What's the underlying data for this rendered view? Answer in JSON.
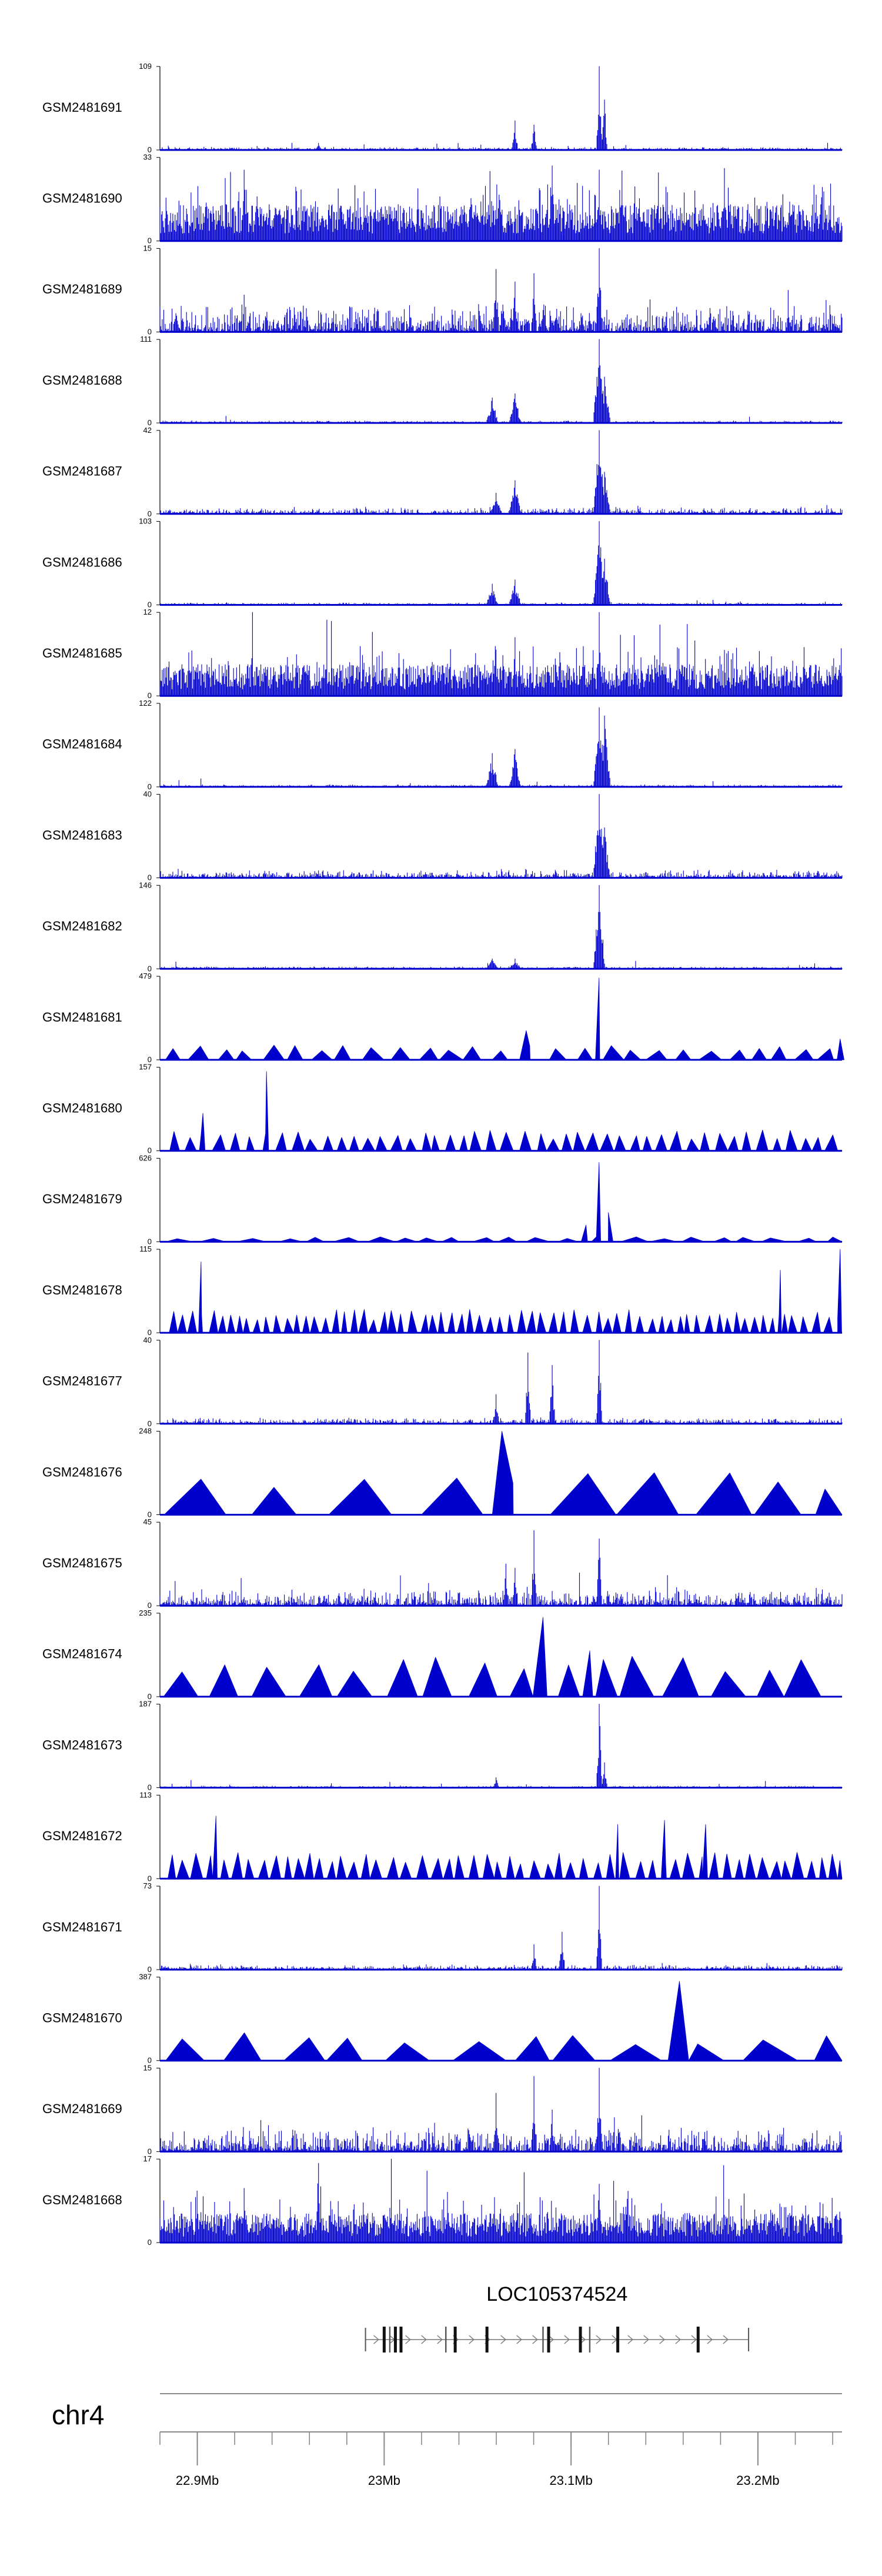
{
  "chart_data": {
    "type": "area",
    "chromosome": "chr4",
    "x_unit": "Mb",
    "xlim": [
      22.88,
      23.245
    ],
    "color": "#0000CC",
    "tracks": [
      {
        "name": "GSM2481691",
        "ymax": "109",
        "ymin": "0",
        "pattern": "sparse",
        "seed": 11,
        "base": 0.03,
        "spikes": [
          [
            23.115,
            1.0
          ],
          [
            23.118,
            0.6
          ],
          [
            23.07,
            0.35
          ],
          [
            23.08,
            0.3
          ],
          [
            22.965,
            0.08
          ]
        ]
      },
      {
        "name": "GSM2481690",
        "ymax": "33",
        "ymin": "0",
        "pattern": "dense",
        "seed": 12,
        "base": 0.35,
        "spikes": [
          [
            22.925,
            0.85
          ],
          [
            23.09,
            0.9
          ],
          [
            23.115,
            0.85
          ]
        ]
      },
      {
        "name": "GSM2481689",
        "ymax": "15",
        "ymin": "0",
        "pattern": "medium",
        "seed": 13,
        "base": 0.18,
        "spikes": [
          [
            23.115,
            1.0
          ],
          [
            23.06,
            0.75
          ],
          [
            23.07,
            0.6
          ],
          [
            23.08,
            0.7
          ]
        ]
      },
      {
        "name": "GSM2481688",
        "ymax": "111",
        "ymin": "0",
        "pattern": "peaks",
        "seed": 14,
        "base": 0.02,
        "spikes": [
          [
            23.058,
            0.3
          ],
          [
            23.07,
            0.35
          ],
          [
            23.115,
            1.0
          ],
          [
            23.118,
            0.55
          ]
        ]
      },
      {
        "name": "GSM2481687",
        "ymax": "42",
        "ymin": "0",
        "pattern": "peaks",
        "seed": 15,
        "base": 0.06,
        "spikes": [
          [
            23.06,
            0.25
          ],
          [
            23.07,
            0.4
          ],
          [
            23.115,
            1.0
          ],
          [
            23.118,
            0.5
          ]
        ]
      },
      {
        "name": "GSM2481686",
        "ymax": "103",
        "ymin": "0",
        "pattern": "peaks",
        "seed": 16,
        "base": 0.02,
        "spikes": [
          [
            23.058,
            0.25
          ],
          [
            23.07,
            0.3
          ],
          [
            23.115,
            1.0
          ],
          [
            23.118,
            0.55
          ]
        ]
      },
      {
        "name": "GSM2481685",
        "ymax": "12",
        "ymin": "0",
        "pattern": "dense",
        "seed": 17,
        "base": 0.3,
        "spikes": [
          [
            23.115,
            1.0
          ],
          [
            23.07,
            0.7
          ],
          [
            23.06,
            0.55
          ]
        ]
      },
      {
        "name": "GSM2481684",
        "ymax": "122",
        "ymin": "0",
        "pattern": "peaks",
        "seed": 18,
        "base": 0.02,
        "spikes": [
          [
            23.058,
            0.4
          ],
          [
            23.07,
            0.45
          ],
          [
            23.115,
            0.95
          ],
          [
            23.118,
            0.85
          ]
        ]
      },
      {
        "name": "GSM2481683",
        "ymax": "40",
        "ymin": "0",
        "pattern": "peaks",
        "seed": 19,
        "base": 0.07,
        "spikes": [
          [
            23.115,
            1.0
          ],
          [
            23.118,
            0.6
          ]
        ]
      },
      {
        "name": "GSM2481682",
        "ymax": "146",
        "ymin": "0",
        "pattern": "peaks",
        "seed": 20,
        "base": 0.02,
        "spikes": [
          [
            23.058,
            0.12
          ],
          [
            23.07,
            0.12
          ],
          [
            23.115,
            1.0
          ]
        ]
      },
      {
        "name": "GSM2481681",
        "ymax": "479",
        "ymin": "0",
        "pattern": "triangles",
        "seed": 21,
        "density": 26,
        "tri_max": 0.18,
        "spikes": [
          [
            23.115,
            0.98
          ],
          [
            23.076,
            0.35
          ],
          [
            23.244,
            0.25
          ]
        ]
      },
      {
        "name": "GSM2481680",
        "ymax": "157",
        "ymin": "0",
        "pattern": "triangles",
        "seed": 22,
        "density": 48,
        "tri_max": 0.25,
        "spikes": [
          [
            22.937,
            0.95
          ],
          [
            22.903,
            0.45
          ]
        ]
      },
      {
        "name": "GSM2481679",
        "ymax": "626",
        "ymin": "0",
        "pattern": "triangles",
        "seed": 23,
        "density": 22,
        "tri_max": 0.06,
        "spikes": [
          [
            23.115,
            0.95
          ],
          [
            23.12,
            0.35
          ],
          [
            23.108,
            0.2
          ]
        ]
      },
      {
        "name": "GSM2481678",
        "ymax": "115",
        "ymin": "0",
        "pattern": "triangles",
        "seed": 24,
        "density": 68,
        "tri_max": 0.28,
        "spikes": [
          [
            22.902,
            0.85
          ],
          [
            23.212,
            0.75
          ],
          [
            23.244,
            1.0
          ]
        ]
      },
      {
        "name": "GSM2481677",
        "ymax": "40",
        "ymin": "0",
        "pattern": "sparse",
        "seed": 25,
        "base": 0.06,
        "spikes": [
          [
            23.077,
            0.85
          ],
          [
            23.09,
            0.7
          ],
          [
            23.115,
            1.0
          ],
          [
            23.06,
            0.35
          ]
        ]
      },
      {
        "name": "GSM2481676",
        "ymax": "248",
        "ymin": "0",
        "pattern": "triangles",
        "seed": 26,
        "density": 9,
        "tri_max": 0.55,
        "spikes": [
          [
            23.063,
            1.0
          ]
        ]
      },
      {
        "name": "GSM2481675",
        "ymax": "45",
        "ymin": "0",
        "pattern": "medium",
        "seed": 27,
        "base": 0.1,
        "spikes": [
          [
            23.08,
            0.9
          ],
          [
            23.115,
            0.8
          ],
          [
            23.065,
            0.5
          ],
          [
            23.07,
            0.45
          ]
        ]
      },
      {
        "name": "GSM2481674",
        "ymax": "235",
        "ymin": "0",
        "pattern": "triangles",
        "seed": 28,
        "density": 17,
        "tri_max": 0.5,
        "spikes": [
          [
            23.085,
            0.95
          ],
          [
            23.11,
            0.55
          ]
        ]
      },
      {
        "name": "GSM2481673",
        "ymax": "187",
        "ymin": "0",
        "pattern": "sparse",
        "seed": 29,
        "base": 0.02,
        "spikes": [
          [
            23.115,
            1.0
          ],
          [
            23.118,
            0.3
          ],
          [
            23.06,
            0.12
          ]
        ]
      },
      {
        "name": "GSM2481672",
        "ymax": "113",
        "ymin": "0",
        "pattern": "triangles",
        "seed": 30,
        "density": 52,
        "tri_max": 0.32,
        "spikes": [
          [
            22.91,
            0.75
          ],
          [
            23.125,
            0.65
          ],
          [
            23.15,
            0.7
          ],
          [
            23.172,
            0.65
          ]
        ]
      },
      {
        "name": "GSM2481671",
        "ymax": "73",
        "ymin": "0",
        "pattern": "sparse",
        "seed": 31,
        "base": 0.05,
        "spikes": [
          [
            23.115,
            1.0
          ],
          [
            23.095,
            0.45
          ],
          [
            23.08,
            0.3
          ]
        ]
      },
      {
        "name": "GSM2481670",
        "ymax": "387",
        "ymin": "0",
        "pattern": "triangles",
        "seed": 32,
        "density": 11,
        "tri_max": 0.35,
        "spikes": [
          [
            23.158,
            0.95
          ]
        ]
      },
      {
        "name": "GSM2481669",
        "ymax": "15",
        "ymin": "0",
        "pattern": "medium",
        "seed": 33,
        "base": 0.15,
        "spikes": [
          [
            23.06,
            0.7
          ],
          [
            23.08,
            0.9
          ],
          [
            23.115,
            1.0
          ],
          [
            23.09,
            0.5
          ]
        ]
      },
      {
        "name": "GSM2481668",
        "ymax": "17",
        "ymin": "0",
        "pattern": "dense",
        "seed": 34,
        "base": 0.28,
        "spikes": [
          [
            22.965,
            0.95
          ],
          [
            22.925,
            0.65
          ],
          [
            23.115,
            0.7
          ]
        ]
      }
    ],
    "gene": {
      "name": "LOC105374524",
      "start": 22.99,
      "end": 23.195,
      "exons": [
        23.0,
        23.003,
        23.006,
        23.009,
        23.033,
        23.038,
        23.055,
        23.085,
        23.088,
        23.105,
        23.11,
        23.125,
        23.168
      ]
    },
    "axis": {
      "ticks": [
        22.9,
        23.0,
        23.1,
        23.2
      ],
      "tick_labels": [
        "22.9Mb",
        "23Mb",
        "23.1Mb",
        "23.2Mb"
      ],
      "minor_step": 0.02
    }
  }
}
